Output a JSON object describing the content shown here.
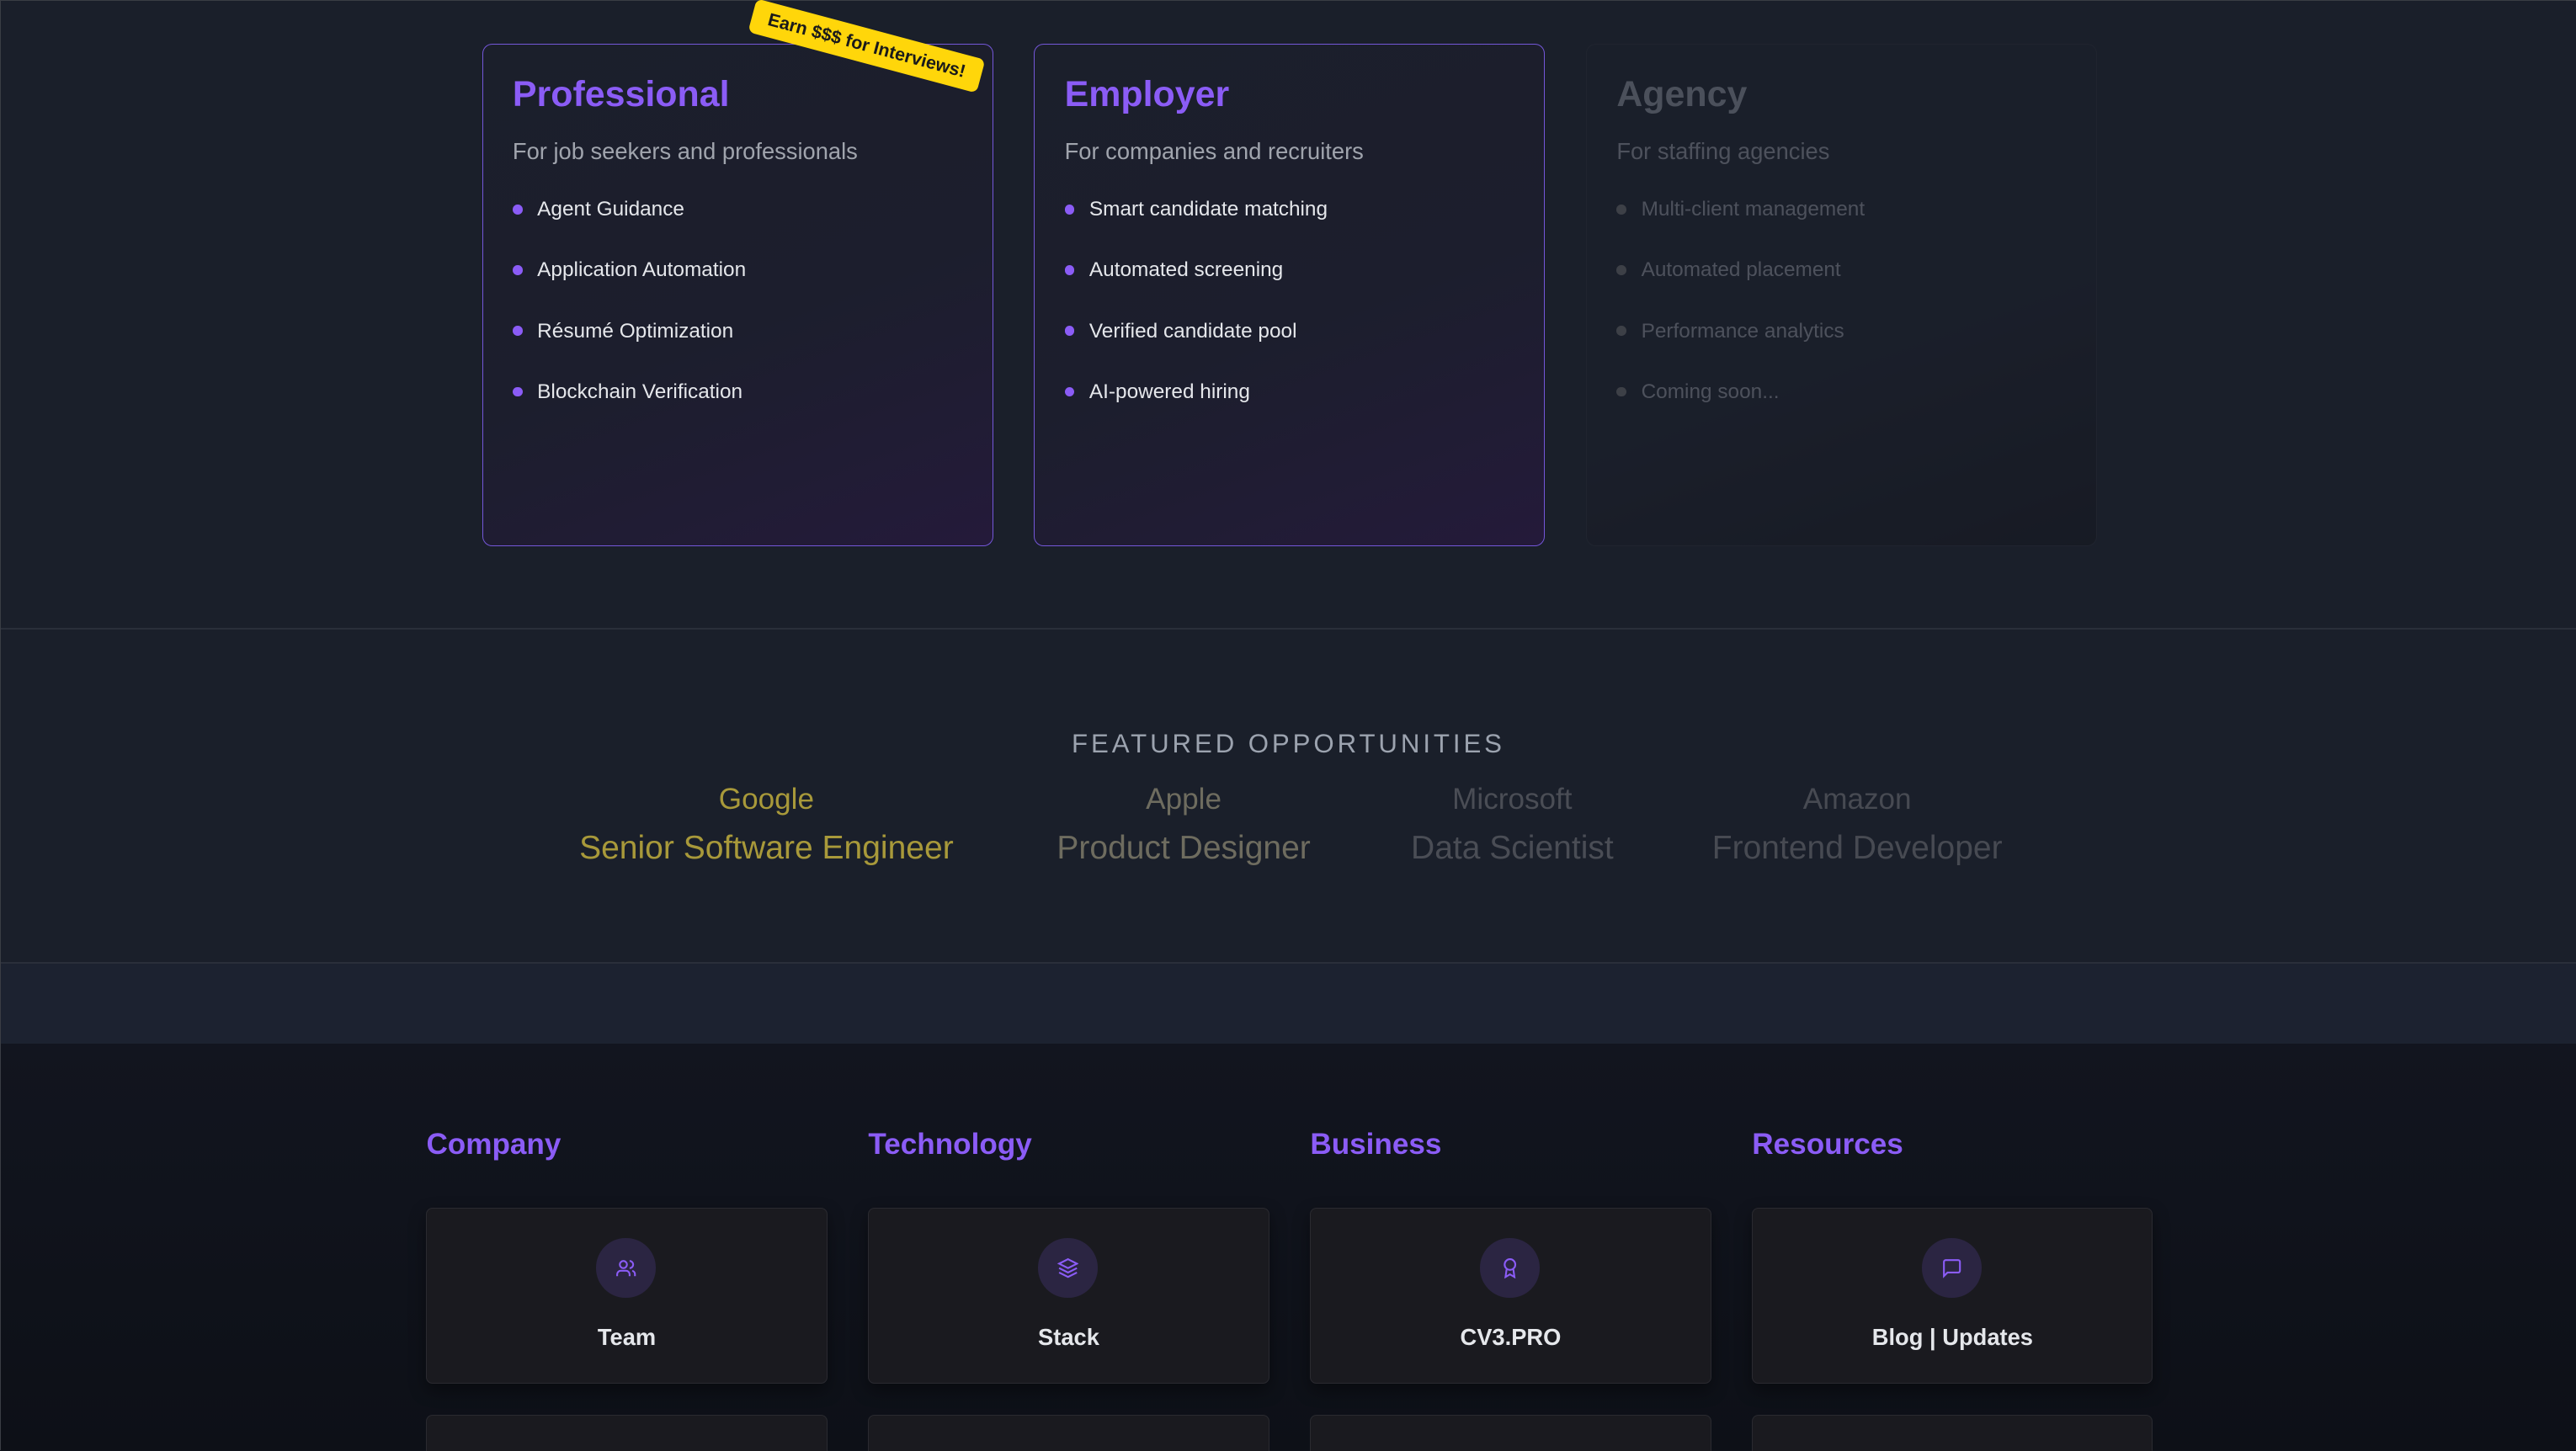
{
  "plans": [
    {
      "title": "Professional",
      "subtitle": "For job seekers and professionals",
      "features": [
        "Agent Guidance",
        "Application Automation",
        "Résumé Optimization",
        "Blockchain Verification"
      ],
      "badge": "Earn $$$ for Interviews!"
    },
    {
      "title": "Employer",
      "subtitle": "For companies and recruiters",
      "features": [
        "Smart candidate matching",
        "Automated screening",
        "Verified candidate pool",
        "AI-powered hiring"
      ]
    },
    {
      "title": "Agency",
      "subtitle": "For staffing agencies",
      "features": [
        "Multi-client management",
        "Automated placement",
        "Performance analytics",
        "Coming soon..."
      ]
    }
  ],
  "featured": {
    "title": "FEATURED OPPORTUNITIES",
    "items": [
      {
        "company": "Google",
        "role": "Senior Software Engineer",
        "color": "#a8993a"
      },
      {
        "company": "Apple",
        "role": "Product Designer",
        "color": "#6e6c5f"
      },
      {
        "company": "Microsoft",
        "role": "Data Scientist",
        "color": "#4a4d55"
      },
      {
        "company": "Amazon",
        "role": "Frontend Developer",
        "color": "#474a52"
      }
    ]
  },
  "footer": {
    "columns": [
      {
        "heading": "Company",
        "card": "Team",
        "icon": "users-icon"
      },
      {
        "heading": "Technology",
        "card": "Stack",
        "icon": "layers-icon"
      },
      {
        "heading": "Business",
        "card": "CV3.PRO",
        "icon": "award-icon"
      },
      {
        "heading": "Resources",
        "card": "Blog | Updates",
        "icon": "message-square-icon"
      }
    ]
  },
  "colors": {
    "accent": "#8b5cf6",
    "badge": "#ffd60a"
  }
}
